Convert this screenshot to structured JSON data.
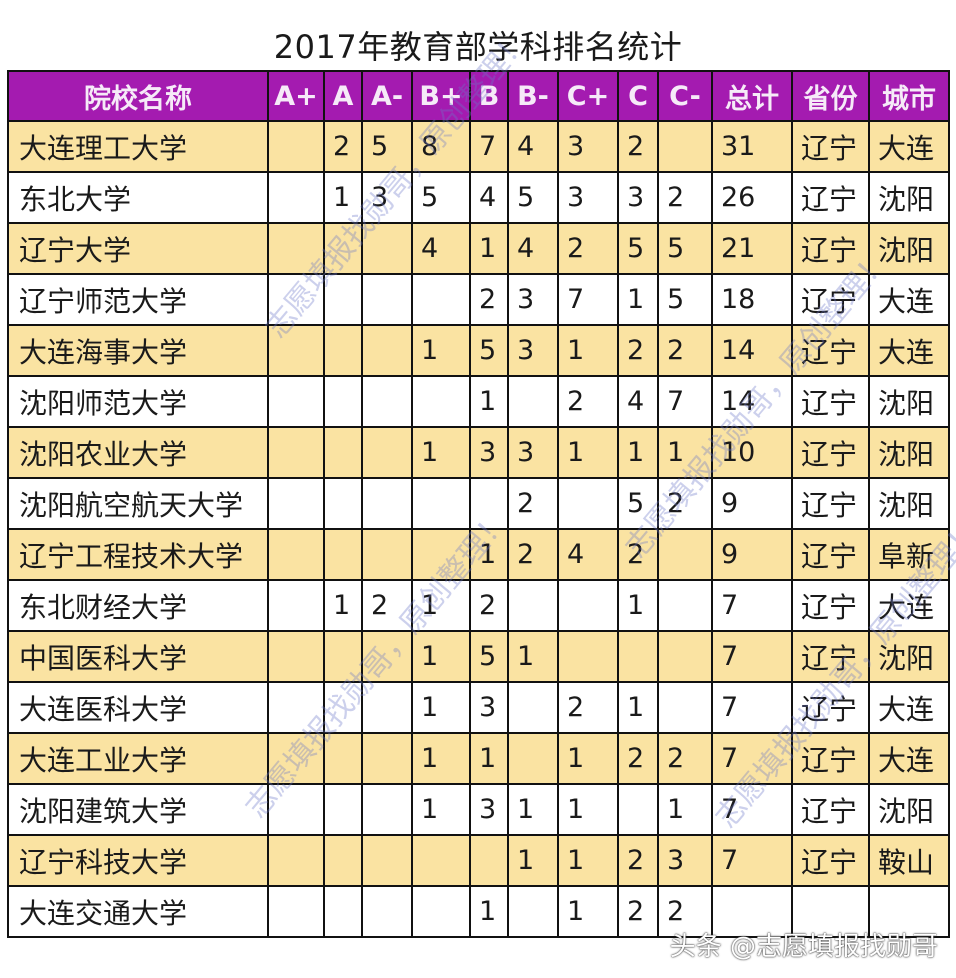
{
  "title": "2017年教育部学科排名统计",
  "colors": {
    "header_bg": "#a41bb0",
    "header_text": "#f6eaf8",
    "row_odd_bg": "#fae3a2",
    "row_even_bg": "#ffffff",
    "border": "#111111"
  },
  "table": {
    "headers": [
      "院校名称",
      "A+",
      "A",
      "A-",
      "B+",
      "B",
      "B-",
      "C+",
      "C",
      "C-",
      "总计",
      "省份",
      "城市"
    ],
    "rows": [
      {
        "name": "大连理工大学",
        "Ap": "",
        "A": "2",
        "Am": "5",
        "Bp": "8",
        "B": "7",
        "Bm": "4",
        "Cp": "3",
        "C": "2",
        "Cm": "",
        "total": "31",
        "province": "辽宁",
        "city": "大连"
      },
      {
        "name": "东北大学",
        "Ap": "",
        "A": "1",
        "Am": "3",
        "Bp": "5",
        "B": "4",
        "Bm": "5",
        "Cp": "3",
        "C": "3",
        "Cm": "2",
        "total": "26",
        "province": "辽宁",
        "city": "沈阳"
      },
      {
        "name": "辽宁大学",
        "Ap": "",
        "A": "",
        "Am": "",
        "Bp": "4",
        "B": "1",
        "Bm": "4",
        "Cp": "2",
        "C": "5",
        "Cm": "5",
        "total": "21",
        "province": "辽宁",
        "city": "沈阳"
      },
      {
        "name": "辽宁师范大学",
        "Ap": "",
        "A": "",
        "Am": "",
        "Bp": "",
        "B": "2",
        "Bm": "3",
        "Cp": "7",
        "C": "1",
        "Cm": "5",
        "total": "18",
        "province": "辽宁",
        "city": "大连"
      },
      {
        "name": "大连海事大学",
        "Ap": "",
        "A": "",
        "Am": "",
        "Bp": "1",
        "B": "5",
        "Bm": "3",
        "Cp": "1",
        "C": "2",
        "Cm": "2",
        "total": "14",
        "province": "辽宁",
        "city": "大连"
      },
      {
        "name": "沈阳师范大学",
        "Ap": "",
        "A": "",
        "Am": "",
        "Bp": "",
        "B": "1",
        "Bm": "",
        "Cp": "2",
        "C": "4",
        "Cm": "7",
        "total": "14",
        "province": "辽宁",
        "city": "沈阳"
      },
      {
        "name": "沈阳农业大学",
        "Ap": "",
        "A": "",
        "Am": "",
        "Bp": "1",
        "B": "3",
        "Bm": "3",
        "Cp": "1",
        "C": "1",
        "Cm": "1",
        "total": "10",
        "province": "辽宁",
        "city": "沈阳"
      },
      {
        "name": "沈阳航空航天大学",
        "Ap": "",
        "A": "",
        "Am": "",
        "Bp": "",
        "B": "",
        "Bm": "2",
        "Cp": "",
        "C": "5",
        "Cm": "2",
        "total": "9",
        "province": "辽宁",
        "city": "沈阳"
      },
      {
        "name": "辽宁工程技术大学",
        "Ap": "",
        "A": "",
        "Am": "",
        "Bp": "",
        "B": "1",
        "Bm": "2",
        "Cp": "4",
        "C": "2",
        "Cm": "",
        "total": "9",
        "province": "辽宁",
        "city": "阜新"
      },
      {
        "name": "东北财经大学",
        "Ap": "",
        "A": "1",
        "Am": "2",
        "Bp": "1",
        "B": "2",
        "Bm": "",
        "Cp": "",
        "C": "1",
        "Cm": "",
        "total": "7",
        "province": "辽宁",
        "city": "大连"
      },
      {
        "name": "中国医科大学",
        "Ap": "",
        "A": "",
        "Am": "",
        "Bp": "1",
        "B": "5",
        "Bm": "1",
        "Cp": "",
        "C": "",
        "Cm": "",
        "total": "7",
        "province": "辽宁",
        "city": "沈阳"
      },
      {
        "name": "大连医科大学",
        "Ap": "",
        "A": "",
        "Am": "",
        "Bp": "1",
        "B": "3",
        "Bm": "",
        "Cp": "2",
        "C": "1",
        "Cm": "",
        "total": "7",
        "province": "辽宁",
        "city": "大连"
      },
      {
        "name": "大连工业大学",
        "Ap": "",
        "A": "",
        "Am": "",
        "Bp": "1",
        "B": "1",
        "Bm": "",
        "Cp": "1",
        "C": "2",
        "Cm": "2",
        "total": "7",
        "province": "辽宁",
        "city": "大连"
      },
      {
        "name": "沈阳建筑大学",
        "Ap": "",
        "A": "",
        "Am": "",
        "Bp": "1",
        "B": "3",
        "Bm": "1",
        "Cp": "1",
        "C": "",
        "Cm": "1",
        "total": "7",
        "province": "辽宁",
        "city": "沈阳"
      },
      {
        "name": "辽宁科技大学",
        "Ap": "",
        "A": "",
        "Am": "",
        "Bp": "",
        "B": "",
        "Bm": "1",
        "Cp": "1",
        "C": "2",
        "Cm": "3",
        "total": "7",
        "province": "辽宁",
        "city": "鞍山"
      },
      {
        "name": "大连交通大学",
        "Ap": "",
        "A": "",
        "Am": "",
        "Bp": "",
        "B": "1",
        "Bm": "",
        "Cp": "1",
        "C": "2",
        "Cm": "2",
        "total": "",
        "province": "",
        "city": ""
      }
    ]
  },
  "watermark": {
    "corner": "头条 @志愿填报找勋哥",
    "diagonal": "志愿填报找勋哥，原创整理！"
  }
}
